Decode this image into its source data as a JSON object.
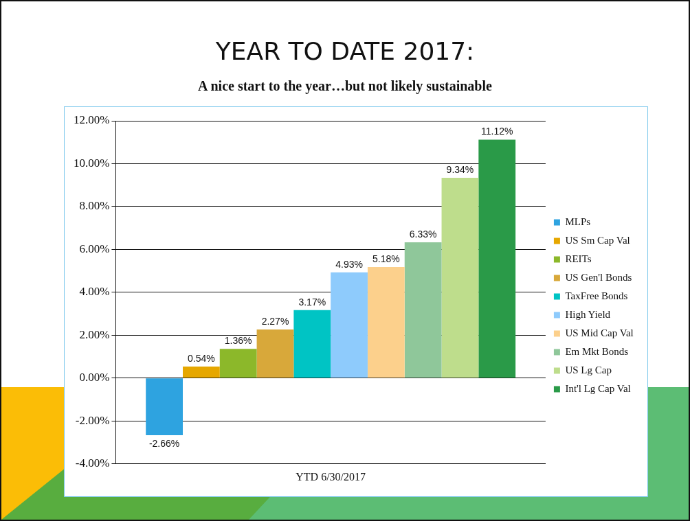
{
  "chart_data": {
    "type": "bar",
    "title": "YEAR TO DATE 2017:",
    "subtitle": "A nice start to the year…but not likely sustainable",
    "categories": [
      "YTD 6/30/2017"
    ],
    "series": [
      {
        "name": "MLPs",
        "color": "#2ea3e0",
        "values": [
          -2.66
        ],
        "value_labels": [
          "-2.66%"
        ]
      },
      {
        "name": "US Sm Cap Val",
        "color": "#e6a700",
        "values": [
          0.54
        ],
        "value_labels": [
          "0.54%"
        ]
      },
      {
        "name": "REITs",
        "color": "#8cb82a",
        "values": [
          1.36
        ],
        "value_labels": [
          "1.36%"
        ]
      },
      {
        "name": "US Gen'l Bonds",
        "color": "#d8a83a",
        "values": [
          2.27
        ],
        "value_labels": [
          "2.27%"
        ]
      },
      {
        "name": "TaxFree Bonds",
        "color": "#00c4c4",
        "values": [
          3.17
        ],
        "value_labels": [
          "3.17%"
        ]
      },
      {
        "name": "High Yield",
        "color": "#8ecbfc",
        "values": [
          4.93
        ],
        "value_labels": [
          "4.93%"
        ]
      },
      {
        "name": "US Mid Cap Val",
        "color": "#fcd08c",
        "values": [
          5.18
        ],
        "value_labels": [
          "5.18%"
        ]
      },
      {
        "name": "Em Mkt Bonds",
        "color": "#8fc79a",
        "values": [
          6.33
        ],
        "value_labels": [
          "6.33%"
        ]
      },
      {
        "name": "US Lg Cap",
        "color": "#bedd8c",
        "values": [
          9.34
        ],
        "value_labels": [
          "9.34%"
        ]
      },
      {
        "name": "Int'l Lg Cap Val",
        "color": "#2a9a48",
        "values": [
          11.12
        ],
        "value_labels": [
          "11.12%"
        ]
      }
    ],
    "ylim": [
      -4,
      12
    ],
    "yticks": [
      {
        "value": -4,
        "label": "-4.00%"
      },
      {
        "value": -2,
        "label": "-2.00%"
      },
      {
        "value": 0,
        "label": "0.00%"
      },
      {
        "value": 2,
        "label": "2.00%"
      },
      {
        "value": 4,
        "label": "4.00%"
      },
      {
        "value": 6,
        "label": "6.00%"
      },
      {
        "value": 8,
        "label": "8.00%"
      },
      {
        "value": 10,
        "label": "10.00%"
      },
      {
        "value": 12,
        "label": "12.00%"
      }
    ],
    "grid": "y",
    "legend": "right"
  }
}
